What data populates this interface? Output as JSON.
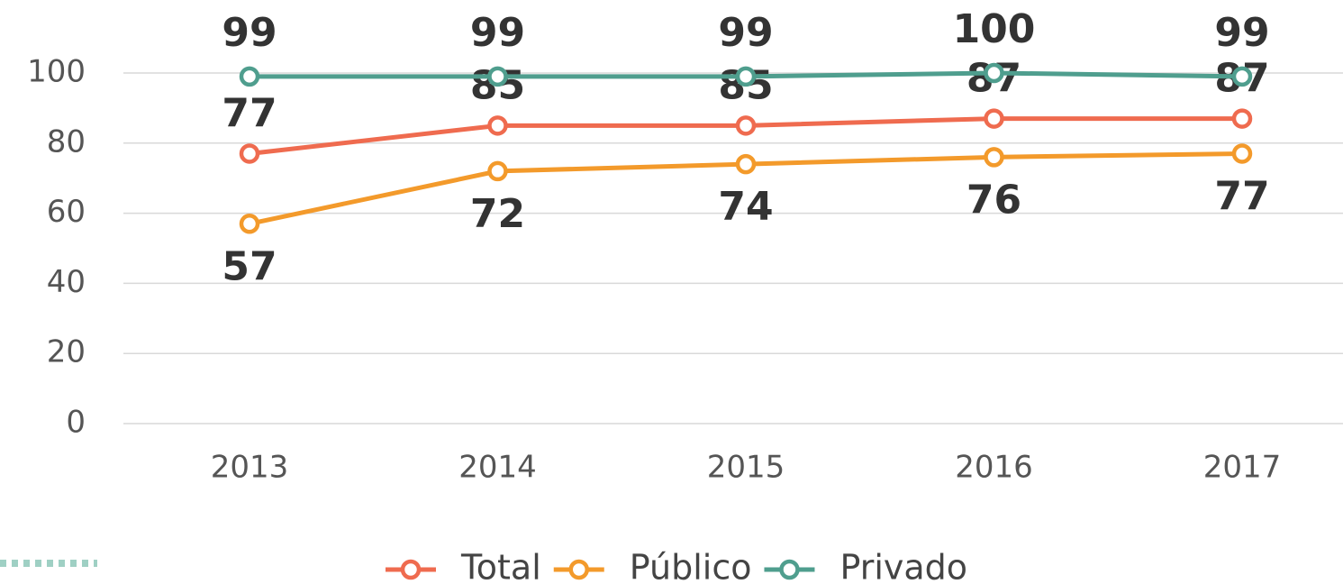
{
  "chart_data": {
    "type": "line",
    "categories": [
      "2013",
      "2014",
      "2015",
      "2016",
      "2017"
    ],
    "series": [
      {
        "name": "Total",
        "color": "#ef6b4f",
        "values": [
          77,
          85,
          85,
          87,
          87
        ]
      },
      {
        "name": "Público",
        "color": "#f39a2b",
        "values": [
          57,
          72,
          74,
          76,
          77
        ]
      },
      {
        "name": "Privado",
        "color": "#4f9e8e",
        "values": [
          99,
          99,
          99,
          100,
          99
        ]
      }
    ],
    "ylim": [
      0,
      100
    ],
    "yticks": [
      0,
      20,
      40,
      60,
      80,
      100
    ],
    "grid": true,
    "legend": "bottom"
  }
}
